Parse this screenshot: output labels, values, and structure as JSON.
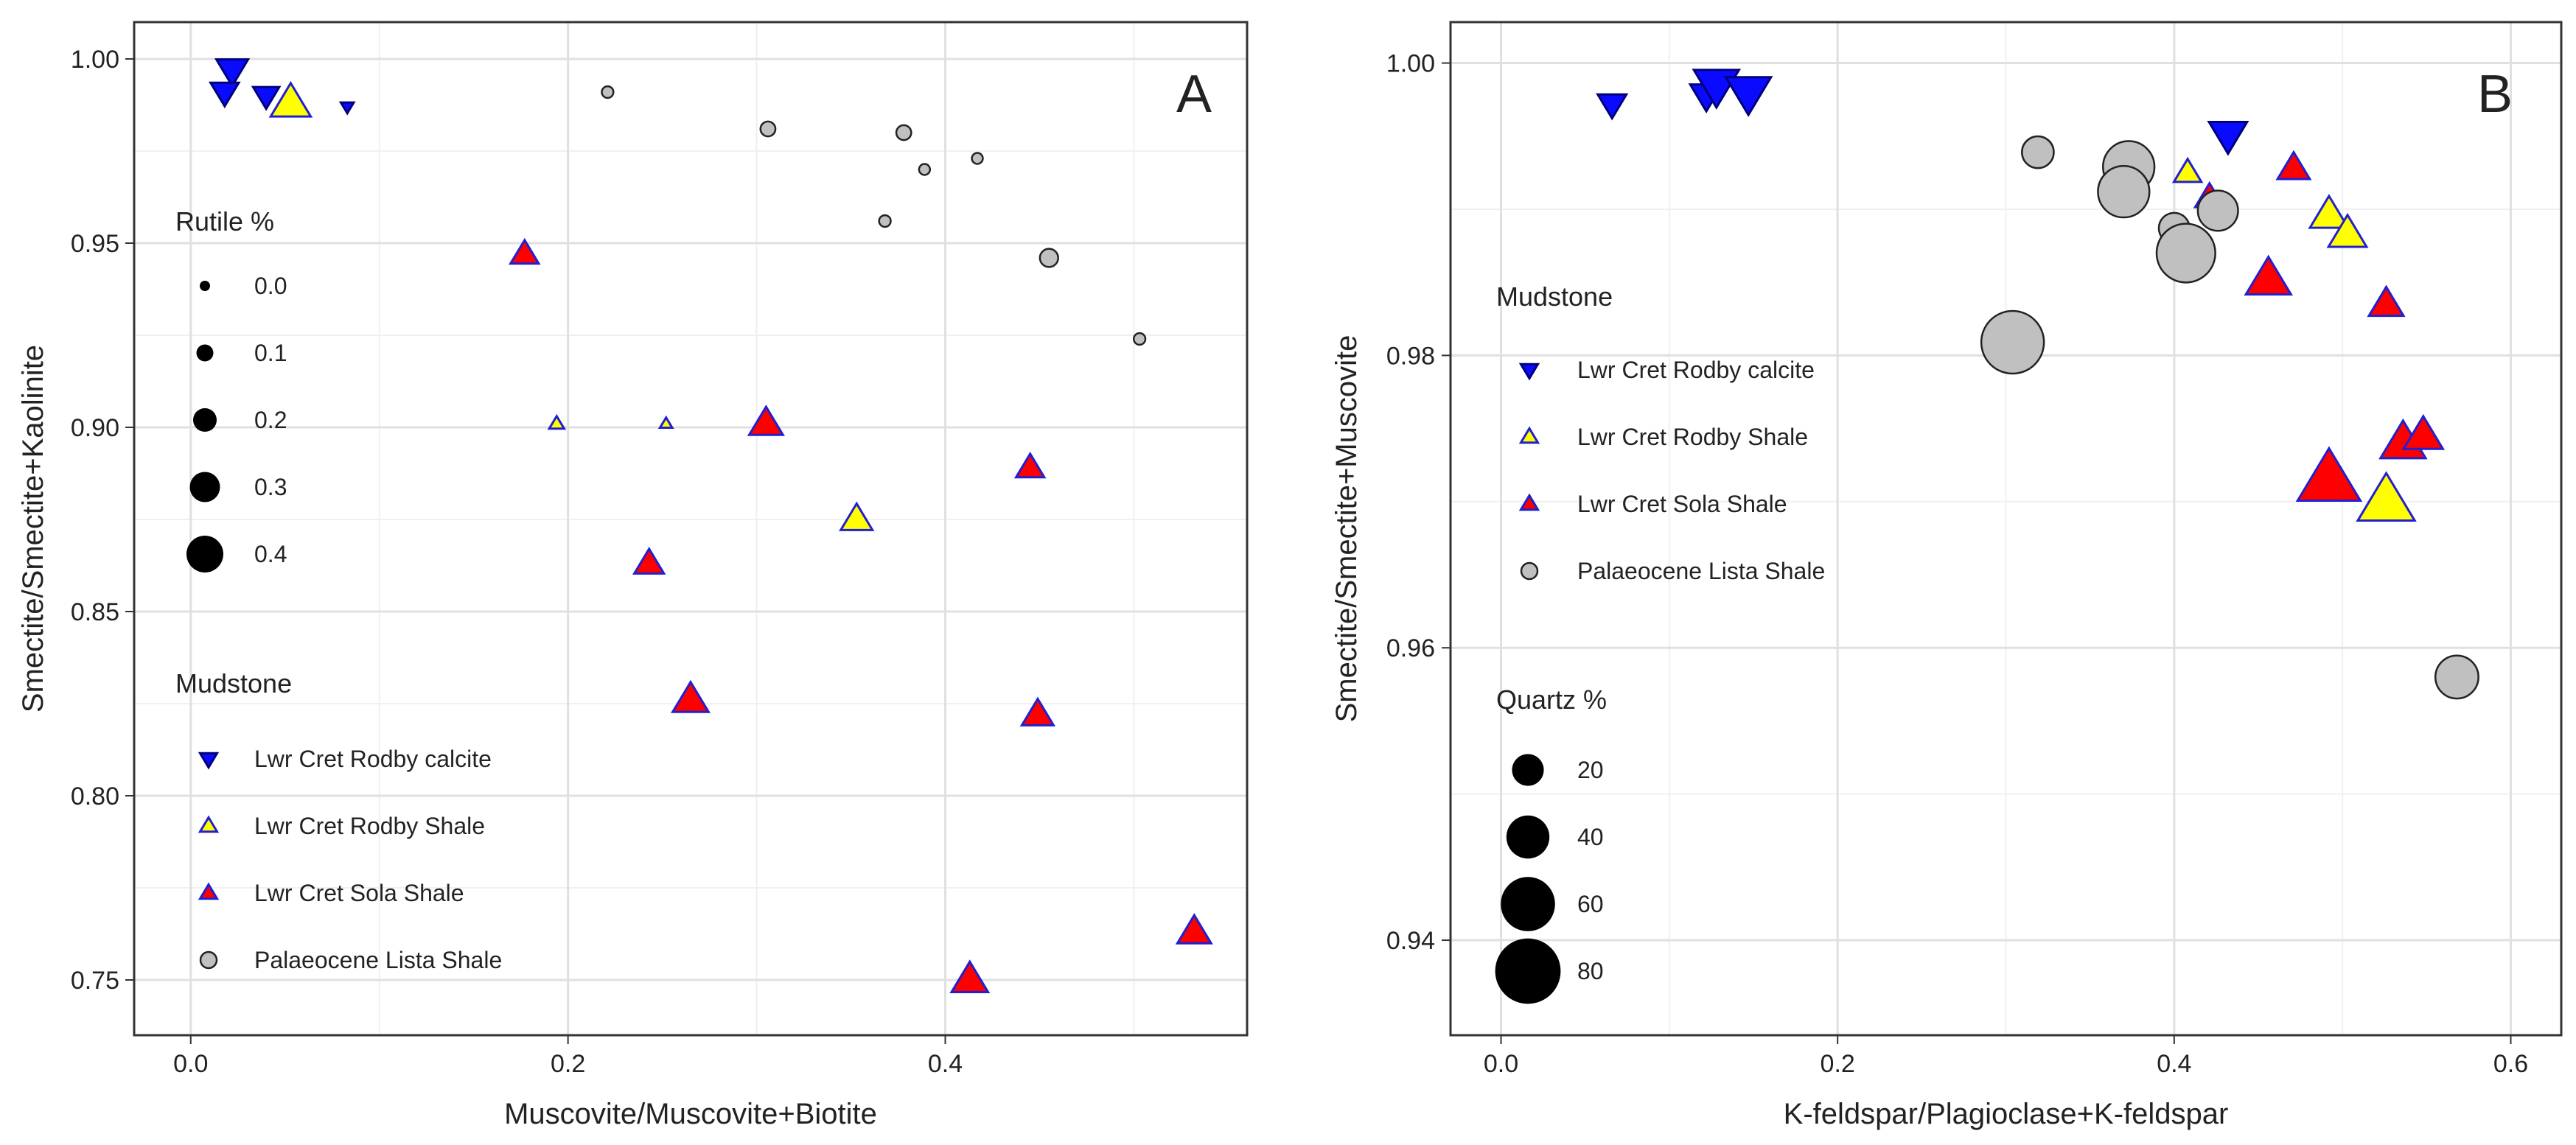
{
  "chart_data": [
    {
      "panel": "A",
      "type": "scatter",
      "panel_label": "A",
      "xlabel": "Muscovite/Muscovite+Biotite",
      "ylabel": "Smectite/Smectite+Kaolinite",
      "xlim": [
        -0.03,
        0.56
      ],
      "ylim": [
        0.735,
        1.01
      ],
      "xticks": [
        0.0,
        0.2,
        0.4
      ],
      "xtick_labels": [
        "0.0",
        "0.2",
        "0.4"
      ],
      "yticks": [
        0.75,
        0.8,
        0.85,
        0.9,
        0.95,
        1.0
      ],
      "ytick_labels": [
        "0.75",
        "0.80",
        "0.85",
        "0.90",
        "0.95",
        "1.00"
      ],
      "grid": true,
      "size_legend": {
        "title": "Rutile %",
        "entries": [
          {
            "label": "0.0",
            "value": 0.0
          },
          {
            "label": "0.1",
            "value": 0.1
          },
          {
            "label": "0.2",
            "value": 0.2
          },
          {
            "label": "0.3",
            "value": 0.3
          },
          {
            "label": "0.4",
            "value": 0.4
          }
        ]
      },
      "group_legend": {
        "title": "Mudstone",
        "entries": [
          {
            "label": "Lwr Cret Rodby calcite",
            "key": "rodby_calcite"
          },
          {
            "label": "Lwr Cret Rodby Shale",
            "key": "rodby_shale"
          },
          {
            "label": "Lwr Cret Sola Shale",
            "key": "sola_shale"
          },
          {
            "label": "Palaeocene Lista Shale",
            "key": "lista_shale"
          }
        ]
      },
      "series": [
        {
          "name": "Lwr Cret Rodby calcite",
          "key": "rodby_calcite",
          "points": [
            {
              "x": 0.022,
              "y": 0.997,
              "size": 0.3
            },
            {
              "x": 0.018,
              "y": 0.991,
              "size": 0.25
            },
            {
              "x": 0.04,
              "y": 0.99,
              "size": 0.22
            },
            {
              "x": 0.083,
              "y": 0.987,
              "size": 0.03
            }
          ]
        },
        {
          "name": "Lwr Cret Rodby Shale",
          "key": "rodby_shale",
          "points": [
            {
              "x": 0.053,
              "y": 0.988,
              "size": 0.42
            },
            {
              "x": 0.194,
              "y": 0.901,
              "size": 0.06
            },
            {
              "x": 0.252,
              "y": 0.901,
              "size": 0.02
            },
            {
              "x": 0.353,
              "y": 0.875,
              "size": 0.3
            }
          ]
        },
        {
          "name": "Lwr Cret Sola Shale",
          "key": "sola_shale",
          "points": [
            {
              "x": 0.177,
              "y": 0.947,
              "size": 0.25
            },
            {
              "x": 0.305,
              "y": 0.901,
              "size": 0.33
            },
            {
              "x": 0.445,
              "y": 0.889,
              "size": 0.25
            },
            {
              "x": 0.243,
              "y": 0.863,
              "size": 0.27
            },
            {
              "x": 0.265,
              "y": 0.826,
              "size": 0.36
            },
            {
              "x": 0.449,
              "y": 0.822,
              "size": 0.3
            },
            {
              "x": 0.413,
              "y": 0.75,
              "size": 0.37
            },
            {
              "x": 0.532,
              "y": 0.763,
              "size": 0.33
            }
          ]
        },
        {
          "name": "Palaeocene Lista Shale",
          "key": "lista_shale",
          "points": [
            {
              "x": 0.221,
              "y": 0.991,
              "size": 0.02
            },
            {
              "x": 0.306,
              "y": 0.981,
              "size": 0.07
            },
            {
              "x": 0.378,
              "y": 0.98,
              "size": 0.07
            },
            {
              "x": 0.389,
              "y": 0.97,
              "size": 0.01
            },
            {
              "x": 0.417,
              "y": 0.973,
              "size": 0.01
            },
            {
              "x": 0.368,
              "y": 0.956,
              "size": 0.02
            },
            {
              "x": 0.455,
              "y": 0.946,
              "size": 0.12
            },
            {
              "x": 0.503,
              "y": 0.924,
              "size": 0.02
            }
          ]
        }
      ]
    },
    {
      "panel": "B",
      "type": "scatter",
      "panel_label": "B",
      "xlabel": "K-feldspar/Plagioclase+K-feldspar",
      "ylabel": "Smectite/Smectite+Muscovite",
      "xlim": [
        -0.03,
        0.63
      ],
      "ylim": [
        0.9335,
        1.0028
      ],
      "xticks": [
        0.0,
        0.2,
        0.4,
        0.6
      ],
      "xtick_labels": [
        "0.0",
        "0.2",
        "0.4",
        "0.6"
      ],
      "yticks": [
        0.94,
        0.96,
        0.98,
        1.0
      ],
      "ytick_labels": [
        "0.94",
        "0.96",
        "0.98",
        "1.00"
      ],
      "grid": true,
      "size_legend": {
        "title": "Quartz %",
        "entries": [
          {
            "label": "20",
            "value": 20
          },
          {
            "label": "40",
            "value": 40
          },
          {
            "label": "60",
            "value": 60
          },
          {
            "label": "80",
            "value": 80
          }
        ]
      },
      "group_legend": {
        "title": "Mudstone",
        "entries": [
          {
            "label": "Lwr Cret Rodby calcite",
            "key": "rodby_calcite"
          },
          {
            "label": "Lwr Cret Rodby Shale",
            "key": "rodby_shale"
          },
          {
            "label": "Lwr Cret Sola Shale",
            "key": "sola_shale"
          },
          {
            "label": "Palaeocene Lista Shale",
            "key": "lista_shale"
          }
        ]
      },
      "series": [
        {
          "name": "Lwr Cret Rodby calcite",
          "key": "rodby_calcite",
          "points": [
            {
              "x": 0.066,
              "y": 0.9972,
              "size": 12
            },
            {
              "x": 0.122,
              "y": 0.9978,
              "size": 18
            },
            {
              "x": 0.128,
              "y": 0.9985,
              "size": 40
            },
            {
              "x": 0.147,
              "y": 0.998,
              "size": 40
            },
            {
              "x": 0.432,
              "y": 0.9951,
              "size": 28
            }
          ]
        },
        {
          "name": "Lwr Cret Rodby Shale",
          "key": "rodby_shale",
          "points": [
            {
              "x": 0.408,
              "y": 0.9925,
              "size": 10
            },
            {
              "x": 0.492,
              "y": 0.9896,
              "size": 28
            },
            {
              "x": 0.503,
              "y": 0.9883,
              "size": 28
            },
            {
              "x": 0.526,
              "y": 0.97,
              "size": 60
            }
          ]
        },
        {
          "name": "Lwr Cret Sola Shale",
          "key": "sola_shale",
          "points": [
            {
              "x": 0.471,
              "y": 0.9928,
              "size": 18
            },
            {
              "x": 0.421,
              "y": 0.9908,
              "size": 12
            },
            {
              "x": 0.456,
              "y": 0.9852,
              "size": 40
            },
            {
              "x": 0.526,
              "y": 0.9835,
              "size": 22
            },
            {
              "x": 0.536,
              "y": 0.974,
              "size": 40
            },
            {
              "x": 0.548,
              "y": 0.9745,
              "size": 30
            },
            {
              "x": 0.492,
              "y": 0.9715,
              "size": 70
            }
          ]
        },
        {
          "name": "Palaeocene Lista Shale",
          "key": "lista_shale",
          "points": [
            {
              "x": 0.319,
              "y": 0.9939,
              "size": 20
            },
            {
              "x": 0.373,
              "y": 0.9929,
              "size": 55
            },
            {
              "x": 0.37,
              "y": 0.9912,
              "size": 55
            },
            {
              "x": 0.426,
              "y": 0.9899,
              "size": 35
            },
            {
              "x": 0.4,
              "y": 0.9887,
              "size": 18
            },
            {
              "x": 0.407,
              "y": 0.987,
              "size": 68
            },
            {
              "x": 0.304,
              "y": 0.9809,
              "size": 75
            },
            {
              "x": 0.568,
              "y": 0.958,
              "size": 40
            }
          ]
        }
      ]
    }
  ]
}
